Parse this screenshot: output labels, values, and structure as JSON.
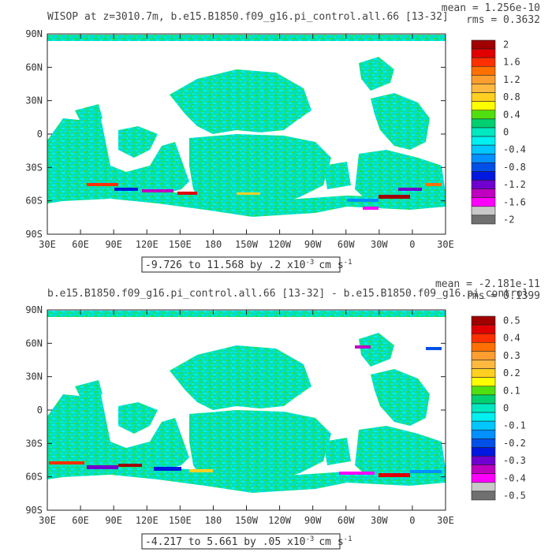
{
  "chart_data": [
    {
      "type": "heatmap",
      "title": "WISOP at z=3010.7m, b.e15.B1850.f09_g16.pi_control.all.66 [13-32]",
      "stats": {
        "mean": "mean = 1.256e-10",
        "rms": "rms = 0.3632"
      },
      "x_ticks": [
        "30E",
        "60E",
        "90E",
        "120E",
        "150E",
        "180",
        "150W",
        "120W",
        "90W",
        "60W",
        "30W",
        "0",
        "30E"
      ],
      "y_ticks": [
        "90N",
        "60N",
        "30N",
        "0",
        "30S",
        "60S",
        "90S"
      ],
      "range_label": "-9.726 to 11.568 by .2 x10",
      "range_exp": "-3",
      "range_unit": "cm s",
      "range_unit_exp": "-1",
      "colorbar": {
        "labels": [
          "2",
          "1.6",
          "1.2",
          "0.8",
          "0.4",
          "0",
          "-0.4",
          "-0.8",
          "-1.2",
          "-1.6",
          "-2"
        ],
        "colors": [
          "#a00000",
          "#e00000",
          "#ff3000",
          "#ff7000",
          "#ff9e30",
          "#ffb840",
          "#ffd020",
          "#ffff00",
          "#50e010",
          "#00d070",
          "#00e8c0",
          "#00f0f0",
          "#00c8ff",
          "#0090ff",
          "#0050e8",
          "#0018e0",
          "#7000d0",
          "#c000c0",
          "#ff00ff",
          "#c8c8c8",
          "#707070"
        ]
      }
    },
    {
      "type": "heatmap",
      "title": "b.e15.B1850.f09_g16.pi_control.all.66 [13-32] - b.e15.B1850.f09_g16.pi_control",
      "stats": {
        "mean": "mean = -2.181e-11",
        "rms": "rms = 0.1399"
      },
      "x_ticks": [
        "30E",
        "60E",
        "90E",
        "120E",
        "150E",
        "180",
        "150W",
        "120W",
        "90W",
        "60W",
        "30W",
        "0",
        "30E"
      ],
      "y_ticks": [
        "90N",
        "60N",
        "30N",
        "0",
        "30S",
        "60S",
        "90S"
      ],
      "range_label": "-4.217 to 5.661 by .05 x10",
      "range_exp": "-3",
      "range_unit": "cm s",
      "range_unit_exp": "-1",
      "colorbar": {
        "labels": [
          "0.5",
          "0.4",
          "0.3",
          "0.2",
          "0.1",
          "0",
          "-0.1",
          "-0.2",
          "-0.3",
          "-0.4",
          "-0.5"
        ],
        "colors": [
          "#a00000",
          "#e00000",
          "#ff3000",
          "#ff7000",
          "#ff9e30",
          "#ffb840",
          "#ffd020",
          "#ffff00",
          "#50e010",
          "#00d070",
          "#00e8c0",
          "#00f0f0",
          "#00c8ff",
          "#0090ff",
          "#0050e8",
          "#0018e0",
          "#7000d0",
          "#c000c0",
          "#ff00ff",
          "#c8c8c8",
          "#707070"
        ]
      }
    }
  ]
}
